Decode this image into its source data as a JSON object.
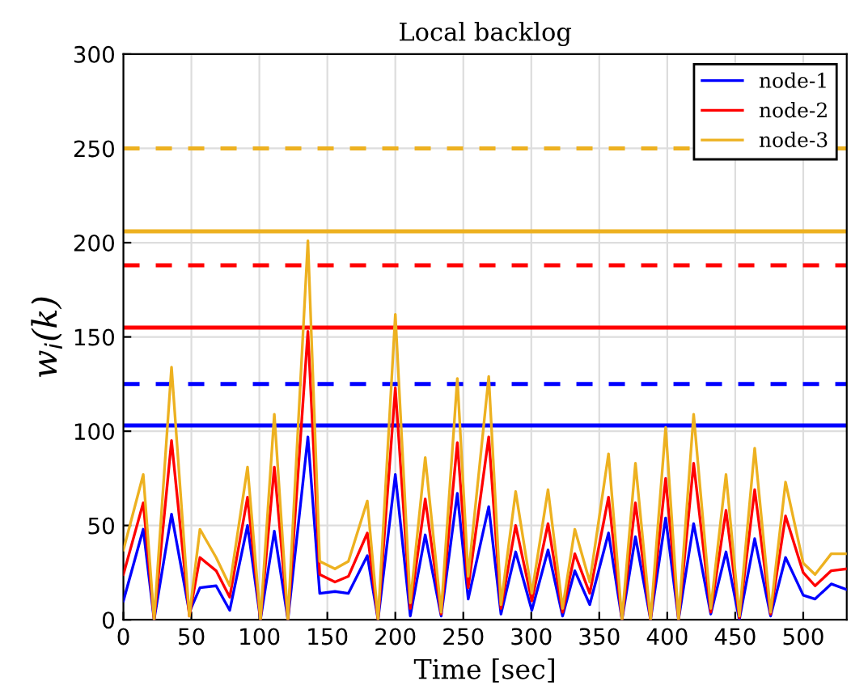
{
  "chart_data": {
    "type": "line",
    "title": "Local backlog",
    "xlabel": "Time [sec]",
    "ylabel": "w$_{i}$(k)",
    "x": [
      0,
      14.6,
      22.6,
      35.4,
      48.5,
      56.3,
      68.2,
      78.2,
      91.3,
      100.8,
      111,
      121,
      135.7,
      144.4,
      155.6,
      165.5,
      179.4,
      187.3,
      200,
      211,
      222,
      233.7,
      245.6,
      253.6,
      268.7,
      277.7,
      288.5,
      300.4,
      312.3,
      323,
      332,
      343,
      356.8,
      366.7,
      376.6,
      387.7,
      398.8,
      408.3,
      419.4,
      432,
      443.2,
      453,
      464.3,
      476,
      487,
      500,
      508.7,
      520.6,
      532
    ],
    "series": [
      {
        "name": "node-1",
        "color": "#0000ff",
        "values": [
          10,
          48,
          0,
          56,
          4,
          17,
          18,
          5,
          50,
          0,
          47,
          0,
          97,
          14,
          15,
          14,
          34,
          0,
          77,
          2,
          45,
          2,
          67,
          11,
          60,
          3,
          36,
          5,
          37,
          2,
          26,
          8,
          46,
          0,
          44,
          0,
          54,
          0,
          51,
          3,
          36,
          0,
          43,
          2,
          33,
          13,
          11,
          19,
          16
        ]
      },
      {
        "name": "node-2",
        "color": "#ff0000",
        "values": [
          24,
          62,
          0,
          95,
          2,
          33,
          26,
          12,
          65,
          0,
          81,
          0,
          153,
          24,
          20,
          23,
          46,
          0,
          123,
          6,
          64,
          3,
          94,
          17,
          97,
          6,
          50,
          10,
          51,
          4,
          35,
          14,
          65,
          0,
          62,
          0,
          75,
          0,
          83,
          4,
          58,
          1,
          69,
          3,
          55,
          25,
          18,
          26,
          27
        ]
      },
      {
        "name": "node-3",
        "color": "#edb120",
        "values": [
          37,
          77,
          0,
          134,
          2,
          48,
          33,
          18,
          81,
          0,
          109,
          0,
          201,
          31,
          27,
          31,
          63,
          0,
          162,
          9,
          86,
          4,
          128,
          23,
          129,
          8,
          68,
          14,
          69,
          6,
          48,
          20,
          88,
          0,
          83,
          0,
          102,
          0,
          109,
          6,
          77,
          2,
          91,
          4,
          73,
          30,
          24,
          35,
          35
        ]
      }
    ],
    "ref_lines": [
      {
        "axis": "y",
        "value": 103,
        "color": "#0000ff",
        "line_style": "solid"
      },
      {
        "axis": "y",
        "value": 125,
        "color": "#0000ff",
        "line_style": "dashed"
      },
      {
        "axis": "y",
        "value": 155,
        "color": "#ff0000",
        "line_style": "solid"
      },
      {
        "axis": "y",
        "value": 188,
        "color": "#ff0000",
        "line_style": "dashed"
      },
      {
        "axis": "y",
        "value": 206,
        "color": "#edb120",
        "line_style": "solid"
      },
      {
        "axis": "y",
        "value": 250,
        "color": "#edb120",
        "line_style": "dashed"
      }
    ],
    "xlim": [
      0,
      532
    ],
    "ylim": [
      0,
      300
    ],
    "xticks": [
      0,
      50,
      100,
      150,
      200,
      250,
      300,
      350,
      400,
      450,
      500
    ],
    "yticks": [
      0,
      50,
      100,
      150,
      200,
      250,
      300
    ],
    "grid": true,
    "legend": "top right",
    "marker": "none",
    "line_style": "solid"
  }
}
